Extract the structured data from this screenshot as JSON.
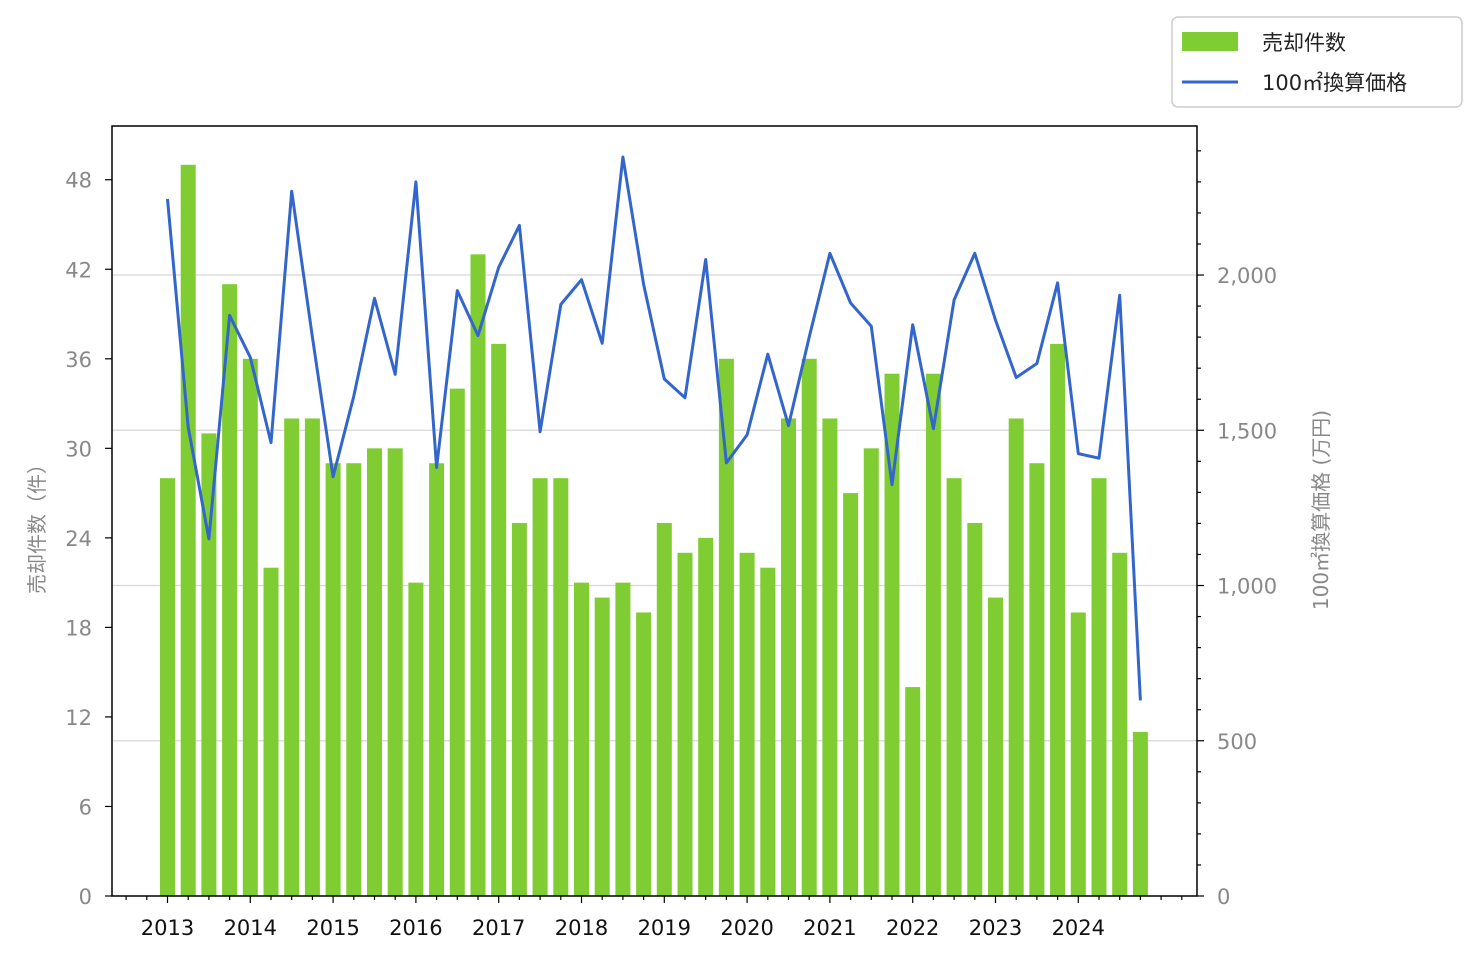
{
  "chart_data": {
    "type": "bar",
    "x": [
      2013,
      2013.25,
      2013.5,
      2013.75,
      2014,
      2014.25,
      2014.5,
      2014.75,
      2015,
      2015.25,
      2015.5,
      2015.75,
      2016,
      2016.25,
      2016.5,
      2016.75,
      2017,
      2017.25,
      2017.5,
      2017.75,
      2018,
      2018.25,
      2018.5,
      2018.75,
      2019,
      2019.25,
      2019.5,
      2019.75,
      2020,
      2020.25,
      2020.5,
      2020.75,
      2021,
      2021.25,
      2021.5,
      2021.75,
      2022,
      2022.25,
      2022.5,
      2022.75,
      2023,
      2023.25,
      2023.5,
      2023.75,
      2024,
      2024.25,
      2024.5,
      2024.75
    ],
    "x_ticks": [
      "2013",
      "2014",
      "2015",
      "2016",
      "2017",
      "2018",
      "2019",
      "2020",
      "2021",
      "2022",
      "2023",
      "2024"
    ],
    "series": [
      {
        "name": "売却件数",
        "type": "bar",
        "axis": "left",
        "color": "#80cc33",
        "values": [
          28,
          49,
          31,
          41,
          36,
          22,
          32,
          32,
          29,
          29,
          30,
          30,
          21,
          29,
          34,
          43,
          37,
          25,
          28,
          28,
          21,
          20,
          21,
          19,
          25,
          23,
          24,
          36,
          23,
          22,
          32,
          36,
          32,
          27,
          30,
          35,
          14,
          35,
          28,
          25,
          20,
          32,
          29,
          37,
          19,
          28,
          23,
          11
        ]
      },
      {
        "name": "100㎡換算価格",
        "type": "line",
        "axis": "right",
        "color": "#3366cc",
        "values": [
          2245,
          1510,
          1150,
          1870,
          1735,
          1460,
          2270,
          1800,
          1350,
          1610,
          1925,
          1680,
          2300,
          1380,
          1950,
          1805,
          2025,
          2160,
          1495,
          1905,
          1985,
          1780,
          2380,
          1970,
          1665,
          1605,
          2050,
          1395,
          1485,
          1745,
          1515,
          1800,
          2070,
          1910,
          1835,
          1325,
          1840,
          1505,
          1920,
          2070,
          1855,
          1670,
          1715,
          1975,
          1425,
          1410,
          1935,
          630
        ]
      }
    ],
    "y_left": {
      "label": "売却件数（件）",
      "lim": [
        0,
        51.6
      ],
      "ticks": [
        "0",
        "6",
        "12",
        "18",
        "24",
        "30",
        "36",
        "42",
        "48"
      ]
    },
    "y_right": {
      "label": "100㎡換算価格 (万円)",
      "lim": [
        0,
        2480
      ],
      "ticks": [
        "0",
        "500",
        "1,000",
        "1,500",
        "2,000"
      ]
    },
    "grid": "right-axis horizontal",
    "legend_position": "top-right outside"
  }
}
